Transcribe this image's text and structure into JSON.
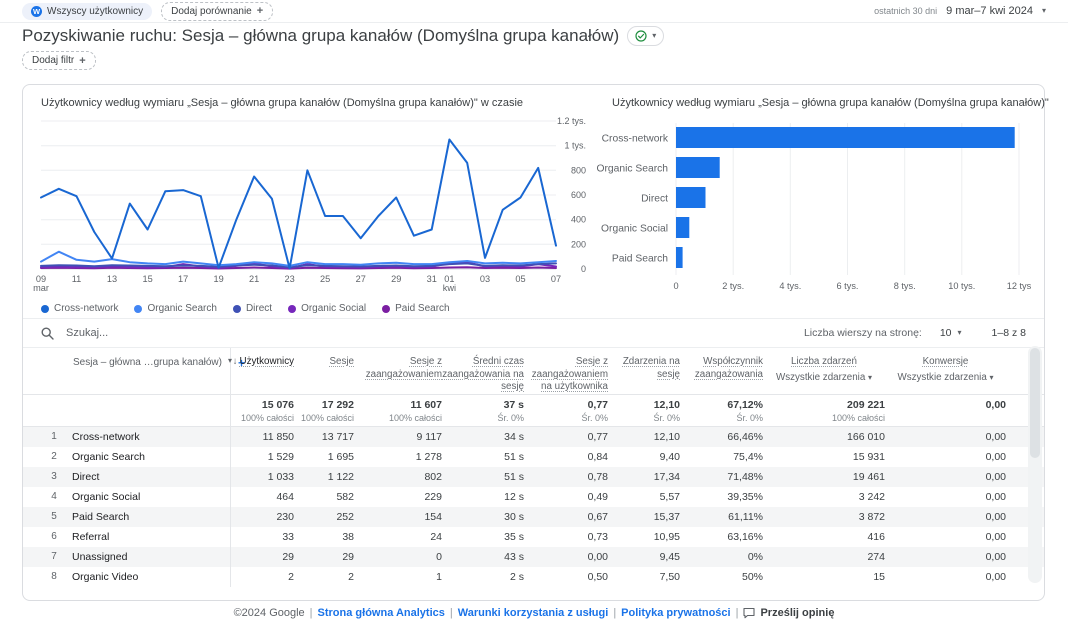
{
  "topbar": {
    "audience_chip": "Wszyscy użytkownicy",
    "audience_avatar": "W",
    "add_comparison": "Dodaj porównanie",
    "date_preset": "ostatnich 30 dni",
    "date_range": "9 mar–7 kwi 2024"
  },
  "page": {
    "title": "Pozyskiwanie ruchu: Sesja – główna grupa kanałów (Domyślna grupa kanałów)",
    "add_filter": "Dodaj filtr"
  },
  "chart_data": [
    {
      "type": "line",
      "title": "Użytkownicy według wymiaru „Sesja – główna grupa kanałów (Domyślna grupa kanałów)\" w czasie",
      "ylim": [
        0,
        1200
      ],
      "y_ticks": [
        0,
        200,
        400,
        600,
        800,
        1000,
        1200
      ],
      "y_tick_labels": [
        "0",
        "200",
        "400",
        "600",
        "800",
        "1 tys.",
        "1.2 tys."
      ],
      "x_ticks": [
        {
          "i": 0,
          "label": "09",
          "sub": "mar"
        },
        {
          "i": 2,
          "label": "11"
        },
        {
          "i": 4,
          "label": "13"
        },
        {
          "i": 6,
          "label": "15"
        },
        {
          "i": 8,
          "label": "17"
        },
        {
          "i": 10,
          "label": "19"
        },
        {
          "i": 12,
          "label": "21"
        },
        {
          "i": 14,
          "label": "23"
        },
        {
          "i": 16,
          "label": "25"
        },
        {
          "i": 18,
          "label": "27"
        },
        {
          "i": 20,
          "label": "29"
        },
        {
          "i": 22,
          "label": "31"
        },
        {
          "i": 23,
          "label": "01",
          "sub": "kwi"
        },
        {
          "i": 25,
          "label": "03"
        },
        {
          "i": 27,
          "label": "05"
        },
        {
          "i": 29,
          "label": "07"
        }
      ],
      "series": [
        {
          "name": "Cross-network",
          "color": "#1967d2",
          "values": [
            580,
            650,
            590,
            300,
            85,
            530,
            320,
            630,
            640,
            590,
            10,
            400,
            750,
            570,
            5,
            800,
            430,
            430,
            250,
            430,
            580,
            270,
            320,
            1050,
            860,
            90,
            480,
            580,
            820,
            190
          ]
        },
        {
          "name": "Organic Search",
          "color": "#4285f4",
          "values": [
            60,
            140,
            75,
            60,
            80,
            55,
            45,
            40,
            60,
            45,
            30,
            40,
            55,
            45,
            25,
            55,
            40,
            40,
            35,
            45,
            50,
            40,
            40,
            55,
            65,
            45,
            50,
            45,
            55,
            65
          ]
        },
        {
          "name": "Direct",
          "color": "#3f51b5",
          "values": [
            25,
            30,
            28,
            22,
            30,
            28,
            25,
            22,
            28,
            25,
            18,
            28,
            35,
            28,
            15,
            30,
            25,
            22,
            20,
            25,
            28,
            22,
            25,
            40,
            45,
            25,
            30,
            28,
            40,
            45
          ]
        },
        {
          "name": "Organic Social",
          "color": "#7627bb",
          "values": [
            15,
            18,
            15,
            12,
            20,
            15,
            12,
            15,
            40,
            20,
            8,
            25,
            45,
            20,
            5,
            40,
            18,
            15,
            12,
            18,
            20,
            15,
            18,
            50,
            55,
            20,
            25,
            20,
            40,
            20
          ]
        },
        {
          "name": "Paid Search",
          "color": "#7b1fa2",
          "values": [
            8,
            10,
            8,
            6,
            10,
            8,
            6,
            8,
            10,
            8,
            4,
            8,
            12,
            8,
            3,
            10,
            8,
            6,
            5,
            8,
            10,
            6,
            8,
            12,
            14,
            8,
            10,
            8,
            12,
            8
          ]
        }
      ]
    },
    {
      "type": "bar",
      "orientation": "horizontal",
      "title": "Użytkownicy według wymiaru „Sesja – główna grupa kanałów (Domyślna grupa kanałów)\"",
      "categories": [
        "Cross-network",
        "Organic Search",
        "Direct",
        "Organic Social",
        "Paid Search"
      ],
      "values": [
        11850,
        1529,
        1033,
        464,
        230
      ],
      "xlim": [
        0,
        12000
      ],
      "x_ticks": [
        0,
        2000,
        4000,
        6000,
        8000,
        10000,
        12000
      ],
      "x_tick_labels": [
        "0",
        "2 tys.",
        "4 tys.",
        "6 tys.",
        "8 tys.",
        "10 tys.",
        "12 tys"
      ],
      "color": "#1a73e8"
    }
  ],
  "table": {
    "search_placeholder": "Szukaj...",
    "rows_per_page_label": "Liczba wierszy na stronę:",
    "rows_per_page_value": "10",
    "pagination": "1–8 z 8",
    "dimension_header": "Sesja – główna …grupa kanałów)",
    "columns": [
      {
        "label": "Użytkownicy",
        "sorted": true
      },
      {
        "label": "Sesje"
      },
      {
        "label": "Sesje z zaangażowaniem"
      },
      {
        "label": "Średni czas zaangażowania na sesję"
      },
      {
        "label": "Sesje z zaangażowaniem na użytkownika"
      },
      {
        "label": "Zdarzenia na sesję"
      },
      {
        "label": "Współczynnik zaangażowania"
      },
      {
        "label": "Liczba zdarzeń",
        "sub": "Wszystkie zdarzenia",
        "center": true
      },
      {
        "label": "Konwersje",
        "sub": "Wszystkie zdarzenia",
        "center": true
      }
    ],
    "totals": {
      "values": [
        "15 076",
        "17 292",
        "11 607",
        "37 s",
        "0,77",
        "12,10",
        "67,12%",
        "209 221",
        "0,00"
      ],
      "subs": [
        "100% całości",
        "100% całości",
        "100% całości",
        "Śr. 0%",
        "Śr. 0%",
        "Śr. 0%",
        "Śr. 0%",
        "100% całości",
        ""
      ]
    },
    "rows": [
      {
        "num": "1",
        "channel": "Cross-network",
        "values": [
          "11 850",
          "13 717",
          "9 117",
          "34 s",
          "0,77",
          "12,10",
          "66,46%",
          "166 010",
          "0,00"
        ]
      },
      {
        "num": "2",
        "channel": "Organic Search",
        "values": [
          "1 529",
          "1 695",
          "1 278",
          "51 s",
          "0,84",
          "9,40",
          "75,4%",
          "15 931",
          "0,00"
        ]
      },
      {
        "num": "3",
        "channel": "Direct",
        "values": [
          "1 033",
          "1 122",
          "802",
          "51 s",
          "0,78",
          "17,34",
          "71,48%",
          "19 461",
          "0,00"
        ]
      },
      {
        "num": "4",
        "channel": "Organic Social",
        "values": [
          "464",
          "582",
          "229",
          "12 s",
          "0,49",
          "5,57",
          "39,35%",
          "3 242",
          "0,00"
        ]
      },
      {
        "num": "5",
        "channel": "Paid Search",
        "values": [
          "230",
          "252",
          "154",
          "30 s",
          "0,67",
          "15,37",
          "61,11%",
          "3 872",
          "0,00"
        ]
      },
      {
        "num": "6",
        "channel": "Referral",
        "values": [
          "33",
          "38",
          "24",
          "35 s",
          "0,73",
          "10,95",
          "63,16%",
          "416",
          "0,00"
        ]
      },
      {
        "num": "7",
        "channel": "Unassigned",
        "values": [
          "29",
          "29",
          "0",
          "43 s",
          "0,00",
          "9,45",
          "0%",
          "274",
          "0,00"
        ]
      },
      {
        "num": "8",
        "channel": "Organic Video",
        "values": [
          "2",
          "2",
          "1",
          "2 s",
          "0,50",
          "7,50",
          "50%",
          "15",
          "0,00"
        ]
      }
    ]
  },
  "footer": {
    "copyright": "©2024 Google",
    "links": [
      "Strona główna Analytics",
      "Warunki korzystania z usługi",
      "Polityka prywatności"
    ],
    "feedback": "Prześlij opinię"
  },
  "colors": {
    "accent_blue": "#1a73e8",
    "bar_blue": "#1a73e8",
    "check_green": "#1e8e3e"
  }
}
